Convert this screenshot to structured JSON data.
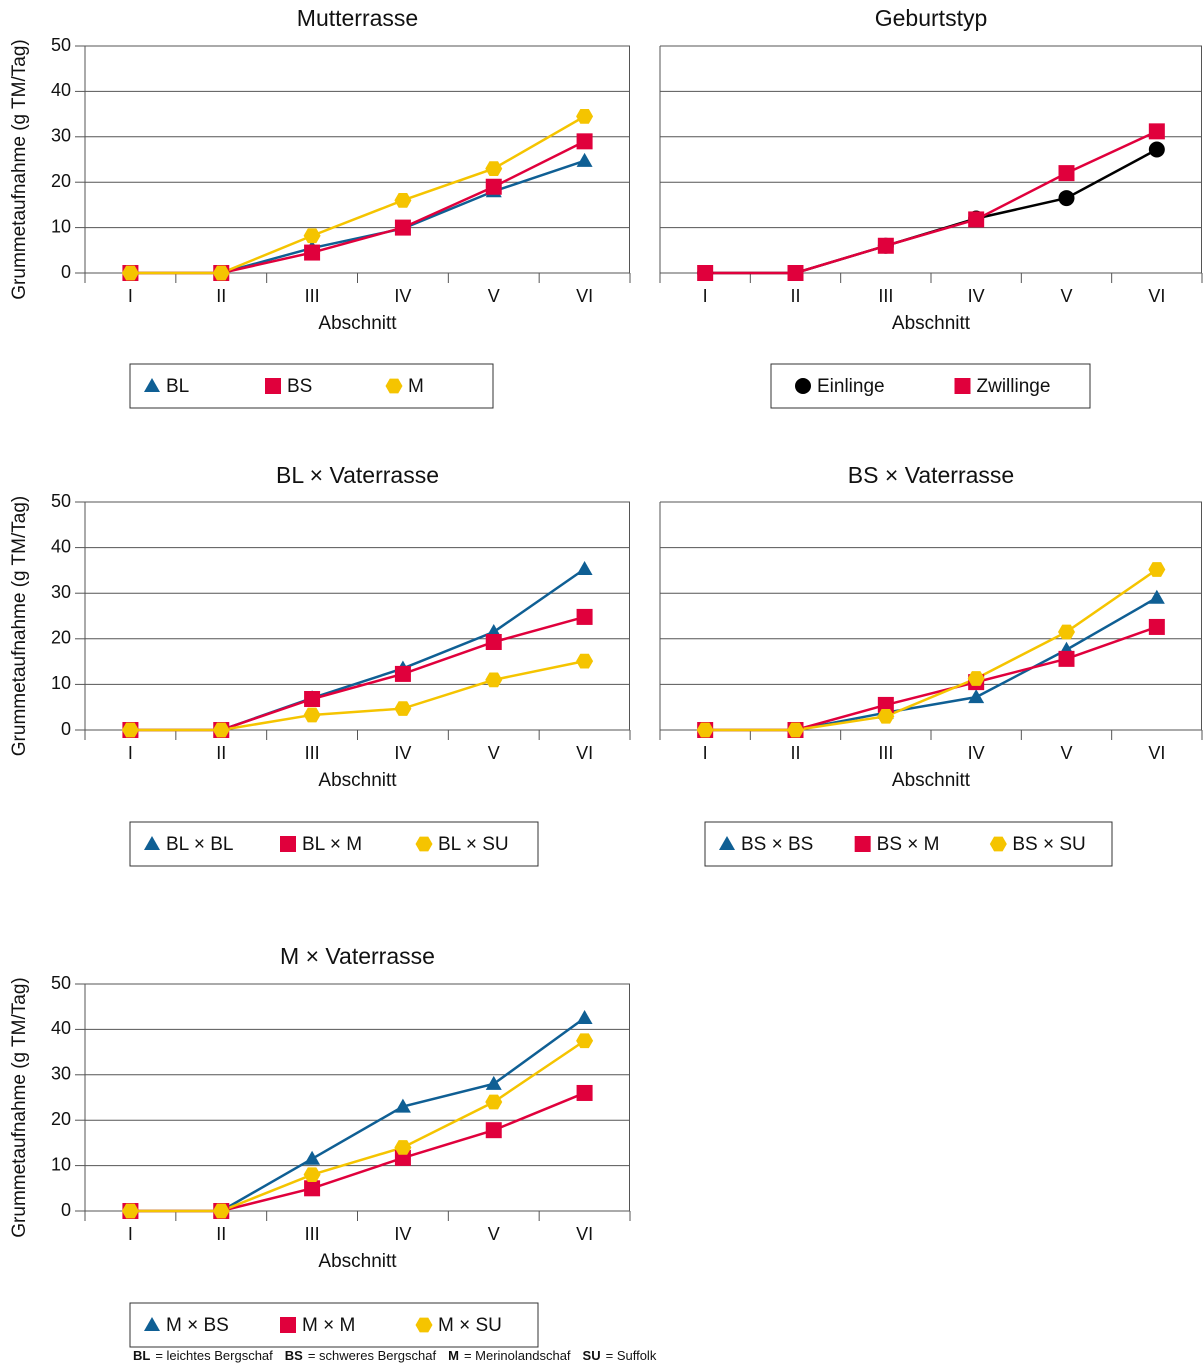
{
  "chart_data": [
    {
      "type": "line",
      "title": "Mutterrasse",
      "ylabel": "Grummetaufnahme (g TM/Tag)",
      "xlabel": "Abschnitt",
      "categories": [
        "I",
        "II",
        "III",
        "IV",
        "V",
        "VI"
      ],
      "ylim": [
        0,
        50
      ],
      "yticks": [
        0,
        10,
        20,
        30,
        40,
        50
      ],
      "show_ytick_labels": true,
      "grid": true,
      "series": [
        {
          "name": "BL",
          "color": "#0f5f94",
          "marker": "triangle",
          "values": [
            0,
            0,
            5.5,
            9.8,
            18,
            24.7
          ]
        },
        {
          "name": "BS",
          "color": "#e0003c",
          "marker": "square",
          "values": [
            0,
            0,
            4.5,
            10,
            19,
            29
          ]
        },
        {
          "name": "M",
          "color": "#f5c400",
          "marker": "hexagon",
          "values": [
            0,
            0,
            8.2,
            16,
            23,
            34.5
          ]
        }
      ]
    },
    {
      "type": "line",
      "title": "Geburtstyp",
      "xlabel": "Abschnitt",
      "categories": [
        "I",
        "II",
        "III",
        "IV",
        "V",
        "VI"
      ],
      "ylim": [
        0,
        50
      ],
      "yticks": [
        0,
        10,
        20,
        30,
        40,
        50
      ],
      "show_ytick_labels": false,
      "grid": true,
      "series": [
        {
          "name": "Einlinge",
          "color": "#000000",
          "marker": "circle",
          "values": [
            0,
            0,
            6,
            12,
            16.5,
            27.2
          ]
        },
        {
          "name": "Zwillinge",
          "color": "#e0003c",
          "marker": "square",
          "values": [
            0,
            0,
            6,
            11.8,
            22,
            31.2
          ]
        }
      ]
    },
    {
      "type": "line",
      "title": "BL × Vaterrasse",
      "ylabel": "Grummetaufnahme (g TM/Tag)",
      "xlabel": "Abschnitt",
      "categories": [
        "I",
        "II",
        "III",
        "IV",
        "V",
        "VI"
      ],
      "ylim": [
        0,
        50
      ],
      "yticks": [
        0,
        10,
        20,
        30,
        40,
        50
      ],
      "show_ytick_labels": true,
      "grid": true,
      "series": [
        {
          "name": "BL × BL",
          "color": "#0f5f94",
          "marker": "triangle",
          "values": [
            0,
            0,
            7,
            13.5,
            21.5,
            35.3
          ]
        },
        {
          "name": "BL × M",
          "color": "#e0003c",
          "marker": "square",
          "values": [
            0,
            0,
            6.8,
            12.3,
            19.3,
            24.8
          ]
        },
        {
          "name": "BL × SU",
          "color": "#f5c400",
          "marker": "hexagon",
          "values": [
            0,
            0,
            3.3,
            4.7,
            11,
            15.1
          ]
        }
      ]
    },
    {
      "type": "line",
      "title": "BS × Vaterrasse",
      "xlabel": "Abschnitt",
      "categories": [
        "I",
        "II",
        "III",
        "IV",
        "V",
        "VI"
      ],
      "ylim": [
        0,
        50
      ],
      "yticks": [
        0,
        10,
        20,
        30,
        40,
        50
      ],
      "show_ytick_labels": false,
      "grid": true,
      "series": [
        {
          "name": "BS × BS",
          "color": "#0f5f94",
          "marker": "triangle",
          "values": [
            0,
            0,
            3.8,
            7.2,
            17.6,
            29
          ]
        },
        {
          "name": "BS × M",
          "color": "#e0003c",
          "marker": "square",
          "values": [
            0,
            0,
            5.5,
            10.5,
            15.6,
            22.6
          ]
        },
        {
          "name": "BS × SU",
          "color": "#f5c400",
          "marker": "hexagon",
          "values": [
            0,
            0,
            3,
            11.3,
            21.5,
            35.2
          ]
        }
      ]
    },
    {
      "type": "line",
      "title": "M × Vaterrasse",
      "ylabel": "Grummetaufnahme (g TM/Tag)",
      "xlabel": "Abschnitt",
      "categories": [
        "I",
        "II",
        "III",
        "IV",
        "V",
        "VI"
      ],
      "ylim": [
        0,
        50
      ],
      "yticks": [
        0,
        10,
        20,
        30,
        40,
        50
      ],
      "show_ytick_labels": true,
      "grid": true,
      "series": [
        {
          "name": "M × BS",
          "color": "#0f5f94",
          "marker": "triangle",
          "values": [
            0,
            0,
            11.5,
            23,
            28,
            42.5
          ]
        },
        {
          "name": "M × M",
          "color": "#e0003c",
          "marker": "square",
          "values": [
            0,
            0,
            5,
            11.7,
            17.8,
            26
          ]
        },
        {
          "name": "M × SU",
          "color": "#f5c400",
          "marker": "hexagon",
          "values": [
            0,
            0,
            8,
            14,
            24,
            37.5
          ]
        }
      ]
    }
  ],
  "footnote": [
    {
      "abbr": "BL",
      "text": "= leichtes Bergschaf"
    },
    {
      "abbr": "BS",
      "text": "= schweres Bergschaf"
    },
    {
      "abbr": "M",
      "text": "= Merinolandschaf"
    },
    {
      "abbr": "SU",
      "text": "= Suffolk"
    }
  ]
}
